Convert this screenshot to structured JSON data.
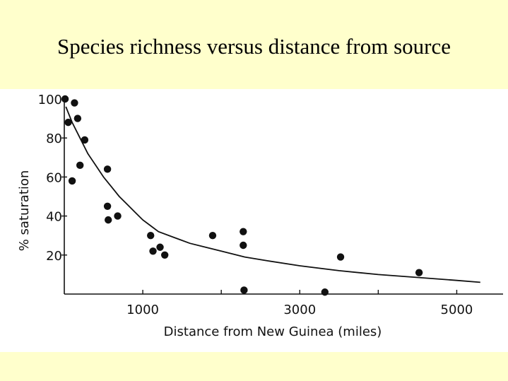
{
  "slide": {
    "title": "Species richness versus distance from source",
    "background_color": "#ffffcc",
    "plot_background_color": "#ffffff"
  },
  "chart_data": {
    "type": "scatter",
    "title": "Species richness versus distance from source",
    "xlabel": "Distance  from  New  Guinea  (miles)",
    "ylabel": "% saturation",
    "xlim": [
      0,
      5500
    ],
    "ylim": [
      0,
      100
    ],
    "x_ticks": [
      1000,
      3000,
      5000
    ],
    "x_tick_labels": [
      "1000",
      "3000",
      "5000"
    ],
    "x_minor_ticks": [
      2000,
      4000
    ],
    "y_ticks": [
      20,
      40,
      60,
      80,
      100
    ],
    "y_tick_labels": [
      "20",
      "40",
      "60",
      "80",
      "100"
    ],
    "grid": false,
    "legend": "none",
    "mark_color": "#111111",
    "series": [
      {
        "kind": "points",
        "points": [
          [
            10,
            100
          ],
          [
            50,
            88
          ],
          [
            130,
            98
          ],
          [
            170,
            90
          ],
          [
            100,
            58
          ],
          [
            260,
            79
          ],
          [
            200,
            66
          ],
          [
            550,
            64
          ],
          [
            550,
            45
          ],
          [
            560,
            38
          ],
          [
            680,
            40
          ],
          [
            1100,
            30
          ],
          [
            1130,
            22
          ],
          [
            1220,
            24
          ],
          [
            1280,
            20
          ],
          [
            1890,
            30
          ],
          [
            2280,
            32
          ],
          [
            2280,
            25
          ],
          [
            2290,
            2
          ],
          [
            3320,
            1
          ],
          [
            3520,
            19
          ],
          [
            4520,
            11
          ]
        ]
      },
      {
        "kind": "fitted-curve",
        "points": [
          [
            20,
            96
          ],
          [
            100,
            88
          ],
          [
            200,
            80
          ],
          [
            300,
            72
          ],
          [
            400,
            66
          ],
          [
            500,
            60
          ],
          [
            600,
            55
          ],
          [
            700,
            50
          ],
          [
            800,
            46
          ],
          [
            900,
            42
          ],
          [
            1000,
            38
          ],
          [
            1100,
            35
          ],
          [
            1200,
            32
          ],
          [
            1400,
            29
          ],
          [
            1600,
            26
          ],
          [
            1800,
            24
          ],
          [
            2000,
            22
          ],
          [
            2300,
            19
          ],
          [
            2600,
            17
          ],
          [
            3000,
            14.5
          ],
          [
            3500,
            12
          ],
          [
            4000,
            10
          ],
          [
            4500,
            8.5
          ],
          [
            5000,
            7
          ],
          [
            5300,
            6
          ]
        ]
      }
    ]
  }
}
